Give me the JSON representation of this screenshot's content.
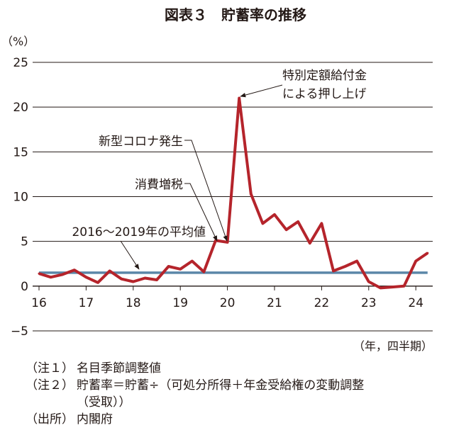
{
  "chart_data": {
    "type": "line",
    "title": "図表３　貯蓄率の推移",
    "y_unit": "（%）",
    "x_unit": "（年，四半期）",
    "ylim": [
      -5,
      25
    ],
    "yticks": [
      -5,
      0,
      5,
      10,
      15,
      20,
      25
    ],
    "ytick_labels": [
      "−5",
      "0",
      "5",
      "10",
      "15",
      "20",
      "25"
    ],
    "xlim": [
      0,
      35
    ],
    "xtick_positions": [
      0,
      4,
      8,
      12,
      16,
      20,
      24,
      28,
      32
    ],
    "xtick_labels": [
      "16",
      "17",
      "18",
      "19",
      "20",
      "21",
      "22",
      "23",
      "24"
    ],
    "grid": true,
    "colors": {
      "series": "#b5242b",
      "average": "#5b87a8",
      "grid": "#231815"
    },
    "series": [
      {
        "values": [
          1.4,
          1.0,
          1.3,
          1.8,
          1.0,
          0.4,
          1.7,
          0.8,
          0.5,
          0.9,
          0.7,
          2.2,
          1.9,
          2.8,
          1.6,
          5.1,
          4.9,
          21.0,
          10.3,
          7.0,
          8.0,
          6.3,
          7.2,
          4.8,
          7.0,
          1.7,
          2.2,
          2.8,
          0.5,
          -0.2,
          -0.1,
          0.0,
          2.8,
          3.7
        ]
      },
      {
        "values": [
          1.5,
          1.5
        ]
      }
    ],
    "annotations": [
      {
        "lines": [
          "特別定額給付金",
          "による押し上げ"
        ]
      },
      {
        "lines": [
          "新型コロナ発生"
        ]
      },
      {
        "lines": [
          "消費増税"
        ]
      },
      {
        "lines": [
          "2016～2019年の平均値"
        ]
      }
    ]
  },
  "notes": [
    {
      "label": "（注１）",
      "text": "名目季節調整値"
    },
    {
      "label": "（注２）",
      "text": "貯蓄率＝貯蓄÷（可処分所得＋年金受給権の変動調整",
      "cont": "（受取））"
    },
    {
      "label": "（出所）",
      "text": "内閣府"
    }
  ]
}
